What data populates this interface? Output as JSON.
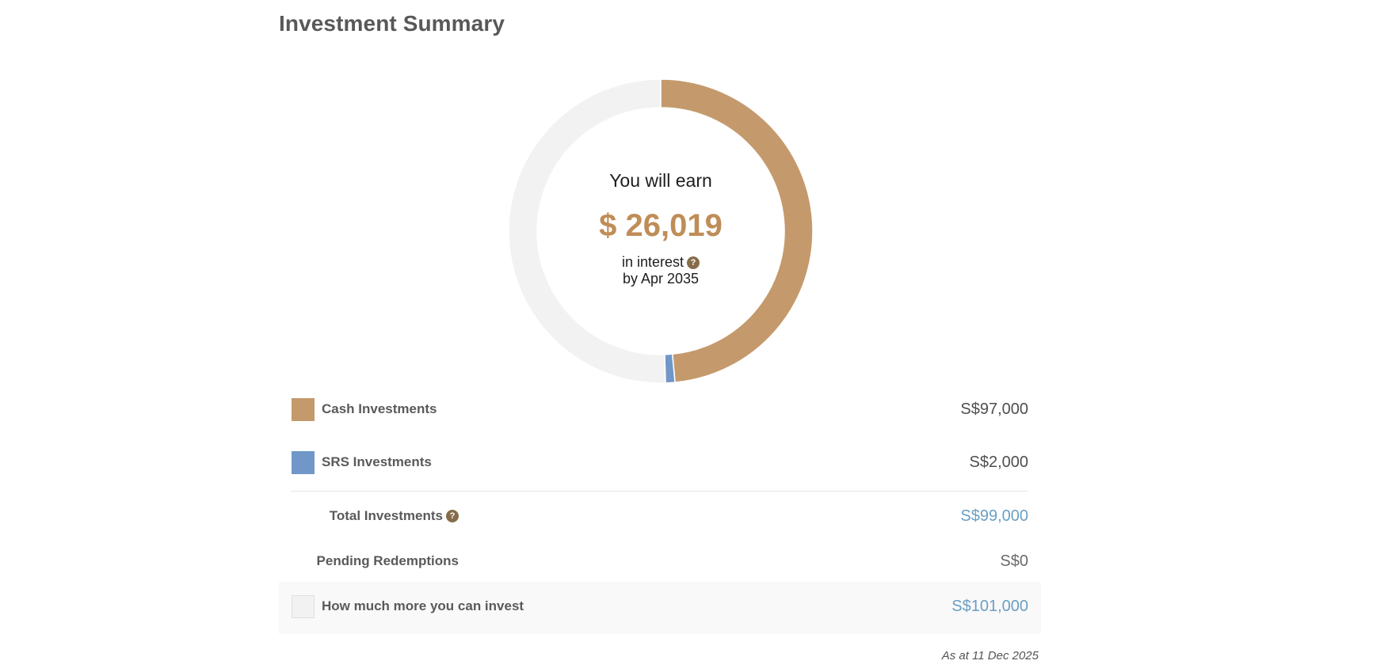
{
  "header": {
    "title": "Investment Summary"
  },
  "summary": {
    "earn_label": "You will earn",
    "earn_value": "$ 26,019",
    "interest_label": "in interest",
    "by_label": "by Apr 2035",
    "help_icon_glyph": "?"
  },
  "breakdown": {
    "cash_label": "Cash Investments",
    "cash_value": "S$97,000",
    "srs_label": "SRS Investments",
    "srs_value": "S$2,000",
    "total_label": "Total Investments",
    "total_value": "S$99,000",
    "pending_label": "Pending Redemptions",
    "pending_value": "S$0",
    "remaining_label": "How much more you can invest",
    "remaining_value": "S$101,000"
  },
  "footer": {
    "as_at": "As at 11 Dec 2025"
  },
  "colors": {
    "cash": "#c49a6c",
    "srs": "#7197c8",
    "remaining": "#f2f2f2",
    "accent_gold": "#bf8d57",
    "accent_blue": "#6a9fc3"
  },
  "chart_data": {
    "type": "pie",
    "variant": "donut",
    "categories": [
      "Cash Investments",
      "SRS Investments",
      "How much more you can invest"
    ],
    "values": [
      97000,
      2000,
      101000
    ],
    "colors": [
      "#c49a6c",
      "#7197c8",
      "#f2f2f2"
    ],
    "start_angle_deg": 0,
    "direction": "clockwise",
    "legend": "bottom",
    "title": ""
  }
}
